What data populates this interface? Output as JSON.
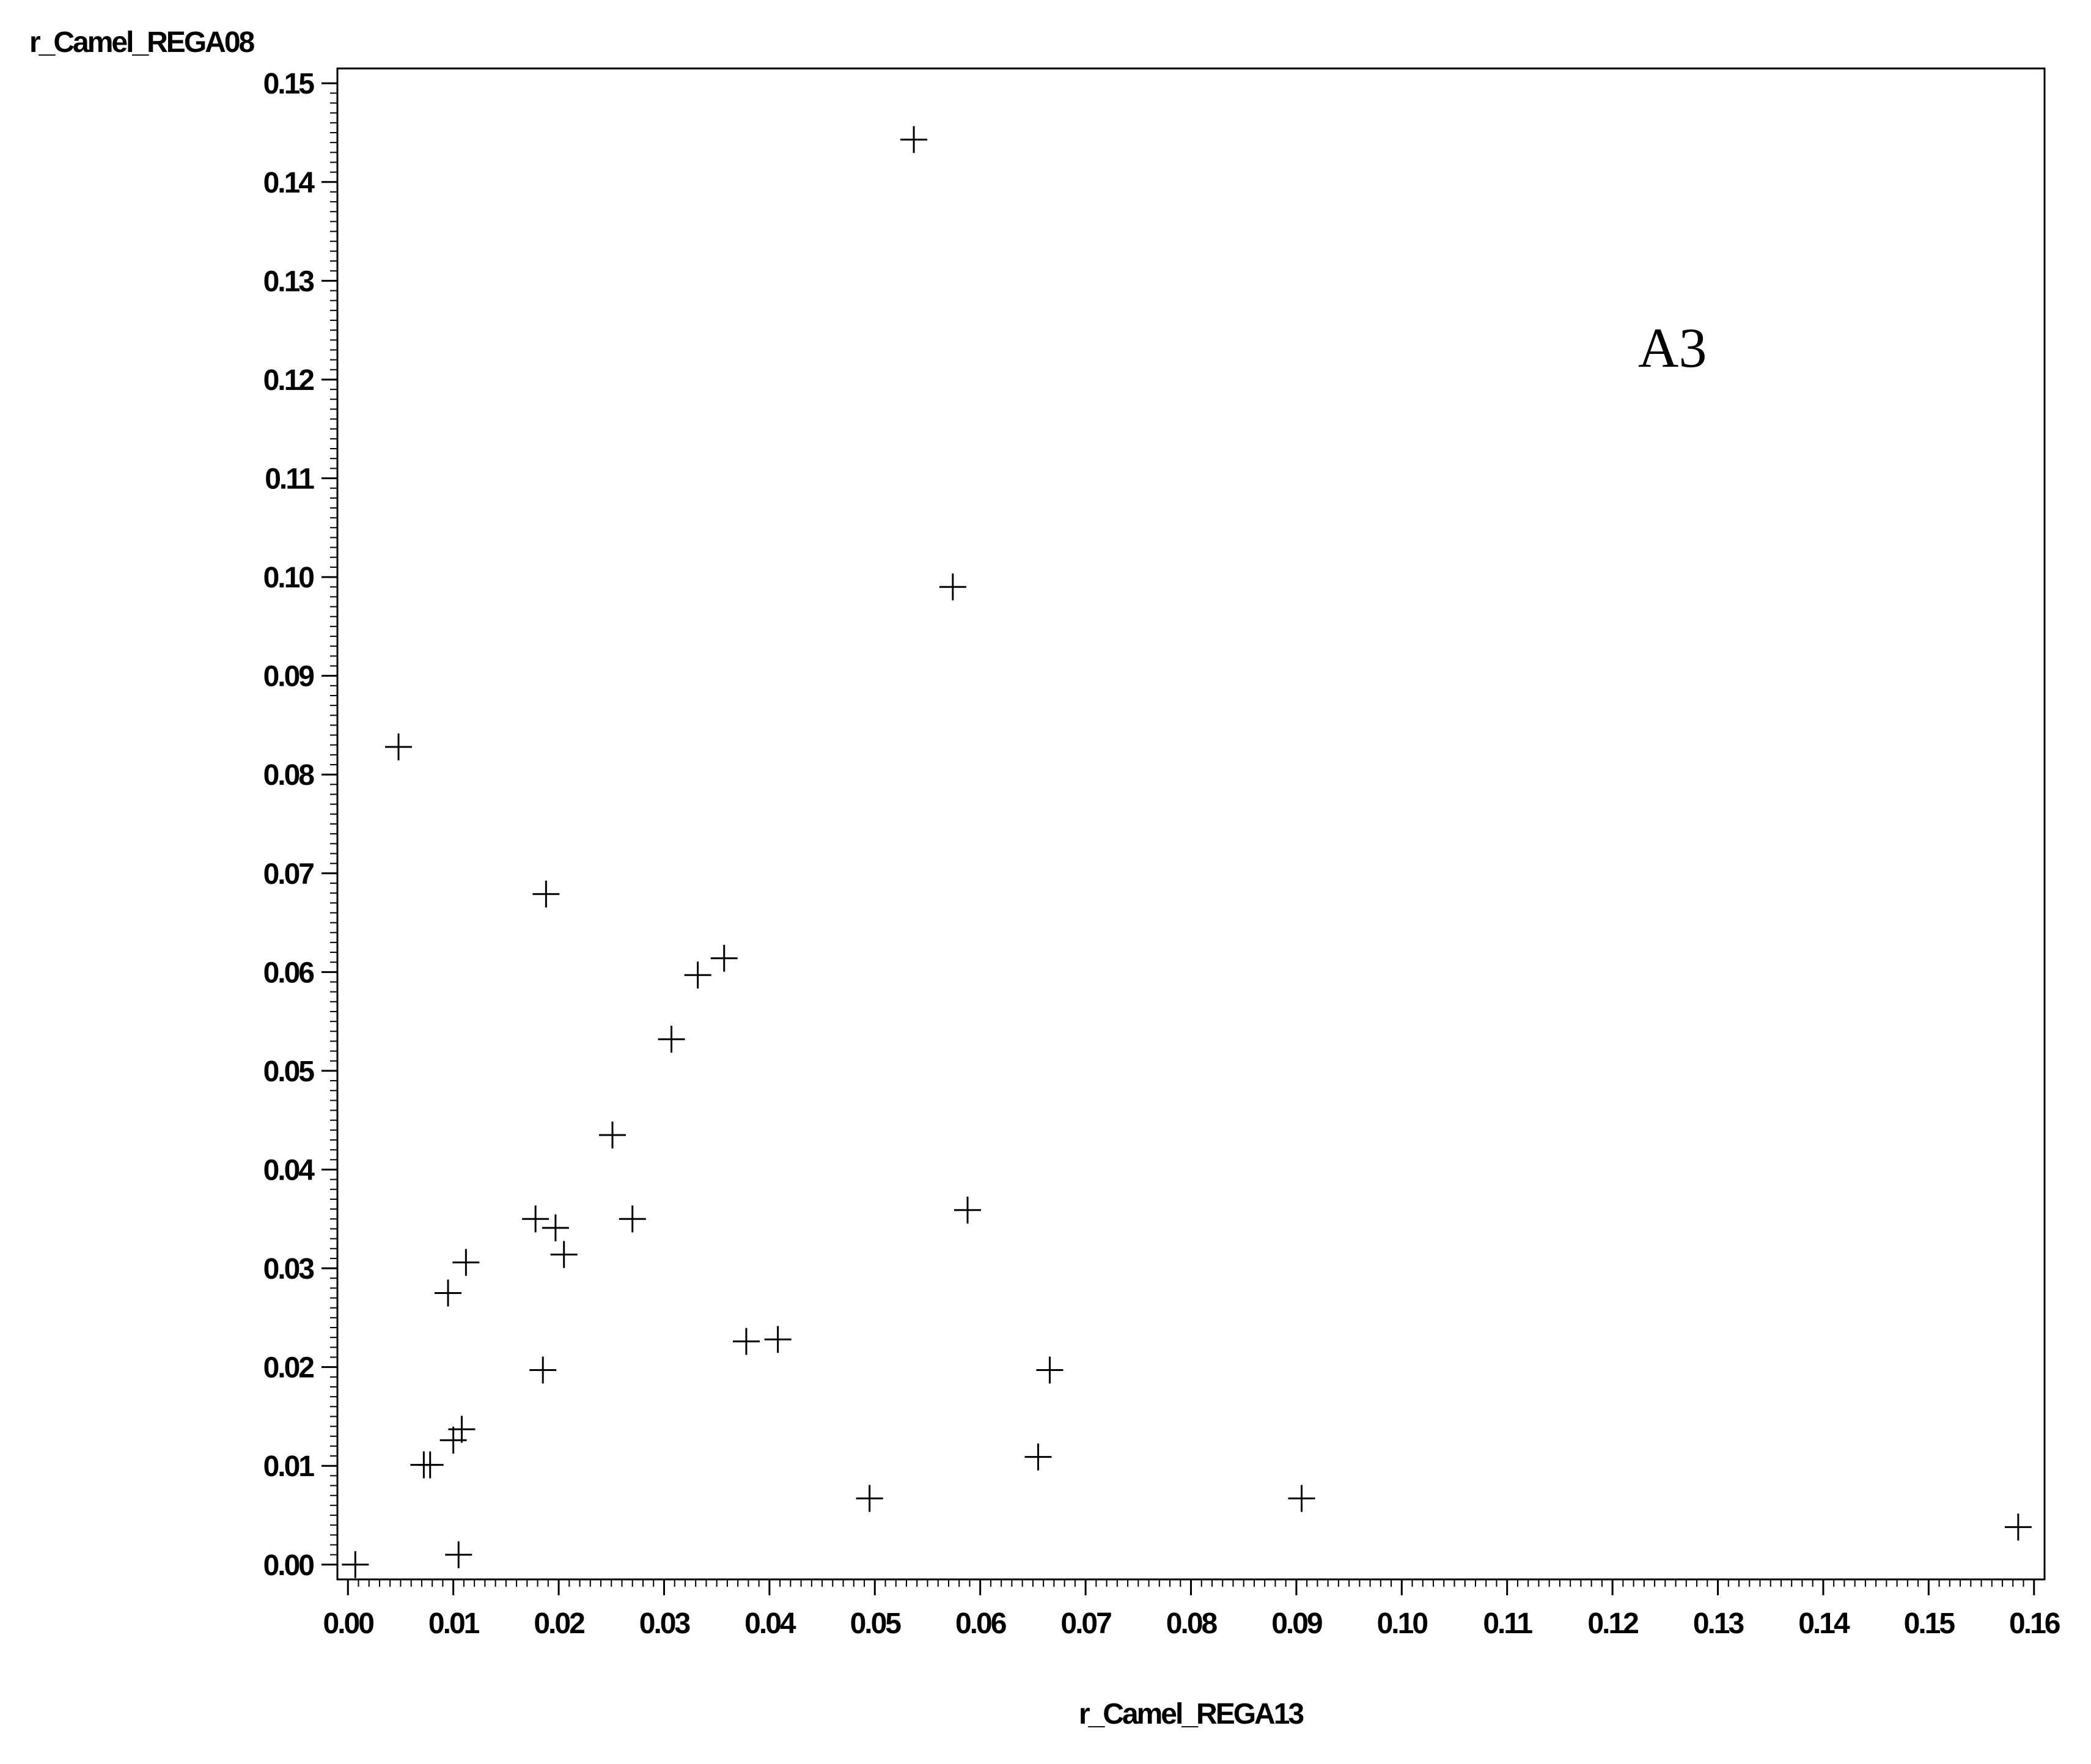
{
  "chart_data": {
    "type": "scatter",
    "xlabel": "r_Camel_REGA13",
    "ylabel": "r_Camel_REGA08",
    "annotation": "A3",
    "marker": "plus",
    "xlim": [
      -0.001,
      0.161
    ],
    "ylim": [
      -0.0015,
      0.1515
    ],
    "xticks": [
      0.0,
      0.01,
      0.02,
      0.03,
      0.04,
      0.05,
      0.06,
      0.07,
      0.08,
      0.09,
      0.1,
      0.11,
      0.12,
      0.13,
      0.14,
      0.15,
      0.16
    ],
    "xtick_labels": [
      "0.00",
      "0.01",
      "0.02",
      "0.03",
      "0.04",
      "0.05",
      "0.06",
      "0.07",
      "0.08",
      "0.09",
      "0.10",
      "0.11",
      "0.12",
      "0.13",
      "0.14",
      "0.15",
      "0.16"
    ],
    "yticks": [
      0.0,
      0.01,
      0.02,
      0.03,
      0.04,
      0.05,
      0.06,
      0.07,
      0.08,
      0.09,
      0.1,
      0.11,
      0.12,
      0.13,
      0.14,
      0.15
    ],
    "ytick_labels": [
      "0.00",
      "0.01",
      "0.02",
      "0.03",
      "0.04",
      "0.05",
      "0.06",
      "0.07",
      "0.08",
      "0.09",
      "0.10",
      "0.11",
      "0.12",
      "0.13",
      "0.14",
      "0.15"
    ],
    "grid": false,
    "points": [
      {
        "x": 0.0007,
        "y": 0.0
      },
      {
        "x": 0.0048,
        "y": 0.0828
      },
      {
        "x": 0.0072,
        "y": 0.0101
      },
      {
        "x": 0.0078,
        "y": 0.0101
      },
      {
        "x": 0.0095,
        "y": 0.0275
      },
      {
        "x": 0.01,
        "y": 0.0126
      },
      {
        "x": 0.0105,
        "y": 0.001
      },
      {
        "x": 0.0108,
        "y": 0.0137
      },
      {
        "x": 0.0112,
        "y": 0.0306
      },
      {
        "x": 0.0178,
        "y": 0.035
      },
      {
        "x": 0.0185,
        "y": 0.0197
      },
      {
        "x": 0.0188,
        "y": 0.0679
      },
      {
        "x": 0.0197,
        "y": 0.0341
      },
      {
        "x": 0.0205,
        "y": 0.0314
      },
      {
        "x": 0.0251,
        "y": 0.0435
      },
      {
        "x": 0.027,
        "y": 0.035
      },
      {
        "x": 0.0307,
        "y": 0.0532
      },
      {
        "x": 0.0332,
        "y": 0.0597
      },
      {
        "x": 0.0357,
        "y": 0.0614
      },
      {
        "x": 0.0378,
        "y": 0.0226
      },
      {
        "x": 0.0408,
        "y": 0.0228
      },
      {
        "x": 0.0495,
        "y": 0.0067
      },
      {
        "x": 0.0537,
        "y": 0.1443
      },
      {
        "x": 0.0574,
        "y": 0.099
      },
      {
        "x": 0.0588,
        "y": 0.0359
      },
      {
        "x": 0.0655,
        "y": 0.0109
      },
      {
        "x": 0.0666,
        "y": 0.0197
      },
      {
        "x": 0.0905,
        "y": 0.0067
      },
      {
        "x": 0.1585,
        "y": 0.0038
      }
    ]
  }
}
